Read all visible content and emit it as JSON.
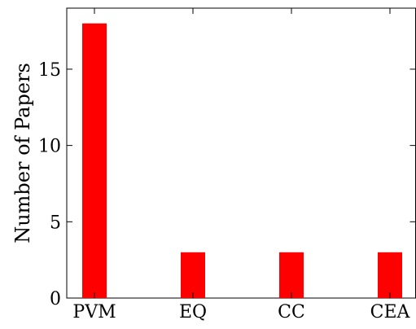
{
  "chart_data": {
    "type": "bar",
    "categories": [
      "PVM",
      "EQ",
      "CC",
      "CEA"
    ],
    "values": [
      18,
      3,
      3,
      3
    ],
    "title": "",
    "xlabel": "",
    "ylabel": "Number of Papers",
    "ylim": [
      0,
      19
    ],
    "yticks": [
      0,
      5,
      10,
      15
    ],
    "grid": false,
    "legend": "none",
    "bar_color": "#ff0000"
  }
}
